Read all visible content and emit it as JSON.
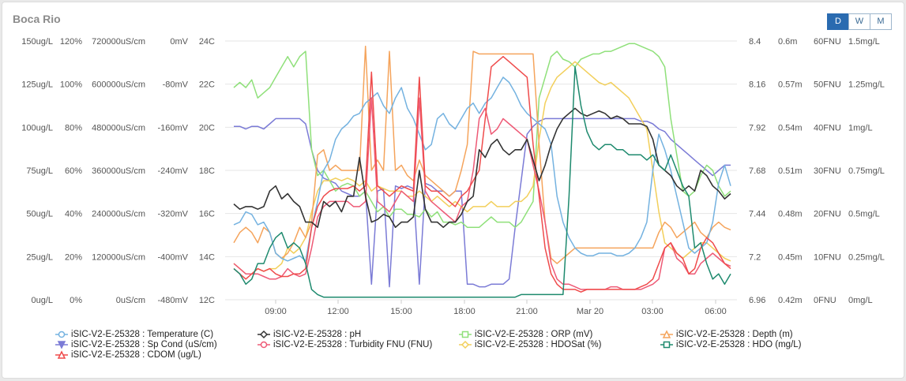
{
  "title": "Boca Rio",
  "range_buttons": [
    {
      "label": "D",
      "active": true
    },
    {
      "label": "W",
      "active": false
    },
    {
      "label": "M",
      "active": false
    }
  ],
  "colors": {
    "temperature": "#74b2e0",
    "ph": "#333333",
    "orp": "#8fe07a",
    "depth": "#f5a45c",
    "spcond": "#7b7bd6",
    "turbidity": "#ee5a76",
    "hdosat": "#f2cf5b",
    "hdo": "#1e8a6e",
    "cdom": "#ef4b4b"
  },
  "chart_data": {
    "type": "line",
    "title": "Boca Rio",
    "x_tick_labels": [
      "09:00",
      "12:00",
      "15:00",
      "18:00",
      "21:00",
      "Mar 20",
      "03:00",
      "06:00"
    ],
    "grid": true,
    "legend_placement": "bottom",
    "left_axes": [
      {
        "id": "cdom",
        "ticks": [
          "150ug/L",
          "125ug/L",
          "100ug/L",
          "75ug/L",
          "50ug/L",
          "25ug/L",
          "0ug/L"
        ],
        "range": [
          0,
          150
        ]
      },
      {
        "id": "hdosat",
        "ticks": [
          "120%",
          "100%",
          "80%",
          "60%",
          "40%",
          "20%",
          "0%"
        ],
        "range": [
          0,
          120
        ]
      },
      {
        "id": "spcond",
        "ticks": [
          "720000uS/cm",
          "600000uS/cm",
          "480000uS/cm",
          "360000uS/cm",
          "240000uS/cm",
          "120000uS/cm",
          "0uS/cm"
        ],
        "range": [
          0,
          720000
        ]
      },
      {
        "id": "orp",
        "ticks": [
          "0mV",
          "-80mV",
          "-160mV",
          "-240mV",
          "-320mV",
          "-400mV",
          "-480mV"
        ],
        "range": [
          -480,
          0
        ]
      },
      {
        "id": "temperature",
        "ticks": [
          "24C",
          "22C",
          "20C",
          "18C",
          "16C",
          "14C",
          "12C"
        ],
        "range": [
          12,
          24
        ]
      }
    ],
    "right_axes": [
      {
        "id": "ph",
        "ticks": [
          "8.4",
          "8.16",
          "7.92",
          "7.68",
          "7.44",
          "7.2",
          "6.96"
        ],
        "range": [
          6.96,
          8.4
        ]
      },
      {
        "id": "depth",
        "ticks": [
          "0.6m",
          "0.57m",
          "0.54m",
          "0.51m",
          "0.48m",
          "0.45m",
          "0.42m"
        ],
        "range": [
          0.42,
          0.6
        ]
      },
      {
        "id": "turbidity",
        "ticks": [
          "60FNU",
          "50FNU",
          "40FNU",
          "30FNU",
          "20FNU",
          "10FNU",
          "0FNU"
        ],
        "range": [
          0,
          60
        ]
      },
      {
        "id": "hdo",
        "ticks": [
          "1.5mg/L",
          "1.25mg/L",
          "1mg/L",
          "0.75mg/L",
          "0.5mg/L",
          "0.25mg/L",
          "0mg/L"
        ],
        "range": [
          0,
          1.5
        ]
      }
    ],
    "series": [
      {
        "id": "temperature",
        "name": "iSIC-V2-E-25328 : Temperature (C)",
        "marker": "circle",
        "y_norm": [
          0.29,
          0.3,
          0.34,
          0.33,
          0.29,
          0.3,
          0.26,
          0.18,
          0.16,
          0.15,
          0.16,
          0.17,
          0.15,
          0.28,
          0.38,
          0.5,
          0.54,
          0.62,
          0.66,
          0.68,
          0.71,
          0.72,
          0.76,
          0.78,
          0.8,
          0.75,
          0.72,
          0.78,
          0.82,
          0.74,
          0.7,
          0.64,
          0.58,
          0.6,
          0.7,
          0.72,
          0.68,
          0.66,
          0.7,
          0.74,
          0.76,
          0.72,
          0.76,
          0.78,
          0.82,
          0.86,
          0.84,
          0.8,
          0.75,
          0.72,
          0.7,
          0.68,
          0.66,
          0.6,
          0.4,
          0.3,
          0.24,
          0.2,
          0.18,
          0.17,
          0.17,
          0.18,
          0.18,
          0.18,
          0.17,
          0.17,
          0.18,
          0.2,
          0.24,
          0.3,
          0.5,
          0.64,
          0.58,
          0.5,
          0.4,
          0.3,
          0.2,
          0.18,
          0.2,
          0.22,
          0.3,
          0.45,
          0.52,
          0.44
        ],
        "y_end": 0.52
      },
      {
        "id": "spcond",
        "name": "iSIC-V2-E-25328 : Sp Cond (uS/cm)",
        "marker": "triangle-down",
        "y_norm": [
          0.67,
          0.67,
          0.66,
          0.67,
          0.67,
          0.66,
          0.68,
          0.7,
          0.7,
          0.7,
          0.7,
          0.7,
          0.68,
          0.58,
          0.5,
          0.47,
          0.46,
          0.45,
          0.42,
          0.41,
          0.4,
          0.4,
          0.42,
          0.06,
          0.42,
          0.43,
          0.05,
          0.44,
          0.43,
          0.44,
          0.43,
          0.06,
          0.45,
          0.44,
          0.42,
          0.42,
          0.4,
          0.42,
          0.42,
          0.06,
          0.06,
          0.05,
          0.05,
          0.06,
          0.06,
          0.06,
          0.08,
          0.28,
          0.46,
          0.64,
          0.67,
          0.69,
          0.7,
          0.7,
          0.7,
          0.7,
          0.7,
          0.7,
          0.7,
          0.7,
          0.7,
          0.7,
          0.7,
          0.7,
          0.7,
          0.7,
          0.7,
          0.7,
          0.69,
          0.69,
          0.68,
          0.66,
          0.65,
          0.62,
          0.6,
          0.58,
          0.56,
          0.54,
          0.52,
          0.5,
          0.48,
          0.5,
          0.52,
          0.52
        ],
        "y_end": 0.52
      },
      {
        "id": "cdom",
        "name": "iSIC-V2-E-25328 : CDOM (ug/L)",
        "marker": "triangle",
        "y_norm": [
          0.12,
          0.1,
          0.08,
          0.1,
          0.12,
          0.11,
          0.12,
          0.1,
          0.09,
          0.09,
          0.1,
          0.1,
          0.12,
          0.28,
          0.36,
          0.4,
          0.42,
          0.43,
          0.43,
          0.43,
          0.44,
          0.42,
          0.44,
          0.88,
          0.44,
          0.42,
          0.4,
          0.42,
          0.44,
          0.43,
          0.42,
          0.86,
          0.44,
          0.42,
          0.42,
          0.4,
          0.38,
          0.36,
          0.4,
          0.42,
          0.46,
          0.5,
          0.7,
          0.9,
          0.92,
          0.94,
          0.92,
          0.9,
          0.88,
          0.86,
          0.6,
          0.4,
          0.2,
          0.1,
          0.06,
          0.04,
          0.04,
          0.04,
          0.03,
          0.04,
          0.04,
          0.04,
          0.04,
          0.04,
          0.04,
          0.04,
          0.04,
          0.04,
          0.05,
          0.06,
          0.08,
          0.14,
          0.2,
          0.22,
          0.18,
          0.16,
          0.1,
          0.12,
          0.2,
          0.24,
          0.22,
          0.18,
          0.14,
          0.12
        ],
        "y_end": 0.12
      },
      {
        "id": "ph",
        "name": "iSIC-V2-E-25328 : pH",
        "marker": "diamond",
        "y_norm": [
          0.37,
          0.35,
          0.36,
          0.36,
          0.35,
          0.36,
          0.42,
          0.44,
          0.39,
          0.41,
          0.38,
          0.36,
          0.3,
          0.3,
          0.28,
          0.38,
          0.36,
          0.38,
          0.34,
          0.4,
          0.4,
          0.55,
          0.4,
          0.3,
          0.31,
          0.33,
          0.32,
          0.28,
          0.3,
          0.3,
          0.32,
          0.5,
          0.35,
          0.3,
          0.3,
          0.28,
          0.3,
          0.3,
          0.33,
          0.38,
          0.4,
          0.58,
          0.55,
          0.6,
          0.62,
          0.58,
          0.56,
          0.58,
          0.58,
          0.62,
          0.54,
          0.46,
          0.52,
          0.6,
          0.66,
          0.7,
          0.72,
          0.74,
          0.72,
          0.71,
          0.72,
          0.73,
          0.72,
          0.7,
          0.71,
          0.7,
          0.68,
          0.68,
          0.68,
          0.67,
          0.62,
          0.52,
          0.5,
          0.48,
          0.44,
          0.42,
          0.44,
          0.42,
          0.5,
          0.48,
          0.44,
          0.42,
          0.39,
          0.41
        ],
        "y_end": 0.41
      },
      {
        "id": "turbidity",
        "name": "iSIC-V2-E-25328 : Turbidity FNU (FNU)",
        "marker": "circle",
        "y_norm": [
          0.14,
          0.12,
          0.1,
          0.1,
          0.1,
          0.09,
          0.08,
          0.08,
          0.09,
          0.12,
          0.1,
          0.09,
          0.1,
          0.2,
          0.32,
          0.36,
          0.38,
          0.38,
          0.38,
          0.38,
          0.36,
          0.36,
          0.38,
          0.78,
          0.38,
          0.36,
          0.34,
          0.38,
          0.42,
          0.4,
          0.38,
          0.78,
          0.42,
          0.38,
          0.36,
          0.34,
          0.32,
          0.3,
          0.36,
          0.38,
          0.5,
          0.7,
          0.74,
          0.64,
          0.66,
          0.7,
          0.68,
          0.66,
          0.64,
          0.62,
          0.52,
          0.42,
          0.3,
          0.14,
          0.08,
          0.06,
          0.06,
          0.05,
          0.04,
          0.04,
          0.04,
          0.04,
          0.04,
          0.05,
          0.05,
          0.04,
          0.04,
          0.04,
          0.04,
          0.05,
          0.06,
          0.08,
          0.2,
          0.22,
          0.16,
          0.14,
          0.1,
          0.1,
          0.14,
          0.16,
          0.18,
          0.16,
          0.14,
          0.13
        ],
        "y_end": 0.13
      },
      {
        "id": "orp",
        "name": "iSIC-V2-E-25328 : ORP (mV)",
        "marker": "square",
        "y_norm": [
          0.82,
          0.84,
          0.82,
          0.85,
          0.78,
          0.8,
          0.82,
          0.86,
          0.9,
          0.94,
          0.9,
          0.94,
          0.96,
          0.58,
          0.48,
          0.5,
          0.46,
          0.42,
          0.44,
          0.45,
          0.44,
          0.4,
          0.42,
          0.38,
          0.34,
          0.36,
          0.32,
          0.35,
          0.35,
          0.33,
          0.33,
          0.32,
          0.35,
          0.32,
          0.34,
          0.3,
          0.3,
          0.29,
          0.3,
          0.28,
          0.28,
          0.28,
          0.3,
          0.32,
          0.3,
          0.3,
          0.3,
          0.28,
          0.3,
          0.34,
          0.38,
          0.78,
          0.86,
          0.94,
          0.96,
          0.93,
          0.92,
          0.9,
          0.93,
          0.94,
          0.95,
          0.95,
          0.96,
          0.96,
          0.97,
          0.98,
          0.99,
          0.99,
          0.98,
          0.97,
          0.96,
          0.94,
          0.9,
          0.7,
          0.56,
          0.42,
          0.4,
          0.42,
          0.48,
          0.52,
          0.5,
          0.44,
          0.4,
          0.42
        ],
        "y_end": 0.42
      },
      {
        "id": "hdosat",
        "name": "iSIC-V2-E-25328 : HDOSat (%)",
        "marker": "diamond",
        "y_norm": [
          0.14,
          0.12,
          0.1,
          0.1,
          0.12,
          0.11,
          0.12,
          0.12,
          0.14,
          0.2,
          0.18,
          0.2,
          0.24,
          0.34,
          0.42,
          0.46,
          0.46,
          0.47,
          0.46,
          0.47,
          0.46,
          0.44,
          0.46,
          0.42,
          0.44,
          0.43,
          0.42,
          0.42,
          0.42,
          0.4,
          0.4,
          0.42,
          0.4,
          0.38,
          0.4,
          0.38,
          0.36,
          0.38,
          0.36,
          0.34,
          0.36,
          0.36,
          0.36,
          0.38,
          0.36,
          0.36,
          0.36,
          0.38,
          0.38,
          0.4,
          0.44,
          0.62,
          0.76,
          0.82,
          0.86,
          0.88,
          0.9,
          0.92,
          0.9,
          0.88,
          0.86,
          0.84,
          0.83,
          0.84,
          0.82,
          0.8,
          0.78,
          0.74,
          0.7,
          0.66,
          0.5,
          0.34,
          0.22,
          0.2,
          0.18,
          0.16,
          0.18,
          0.2,
          0.22,
          0.22,
          0.2,
          0.18,
          0.16,
          0.15
        ],
        "y_end": 0.15
      },
      {
        "id": "hdo",
        "name": "iSIC-V2-E-25328 : HDO (mg/L)",
        "marker": "square",
        "y_norm": [
          0.12,
          0.1,
          0.06,
          0.08,
          0.14,
          0.14,
          0.2,
          0.24,
          0.26,
          0.2,
          0.22,
          0.2,
          0.14,
          0.04,
          0.02,
          0.01,
          0.01,
          0.01,
          0.01,
          0.01,
          0.01,
          0.01,
          0.01,
          0.01,
          0.01,
          0.01,
          0.01,
          0.01,
          0.01,
          0.01,
          0.01,
          0.01,
          0.01,
          0.01,
          0.01,
          0.01,
          0.01,
          0.01,
          0.01,
          0.01,
          0.01,
          0.01,
          0.01,
          0.01,
          0.01,
          0.01,
          0.01,
          0.01,
          0.02,
          0.02,
          0.02,
          0.02,
          0.02,
          0.02,
          0.02,
          0.02,
          0.4,
          0.9,
          0.75,
          0.65,
          0.6,
          0.58,
          0.6,
          0.6,
          0.58,
          0.58,
          0.56,
          0.56,
          0.56,
          0.54,
          0.56,
          0.52,
          0.5,
          0.56,
          0.5,
          0.44,
          0.4,
          0.2,
          0.22,
          0.14,
          0.08,
          0.1,
          0.06,
          0.1
        ],
        "y_end": 0.1
      },
      {
        "id": "depth",
        "name": "iSIC-V2-E-25328 : Depth (m)",
        "marker": "triangle",
        "y_norm": [
          0.22,
          0.26,
          0.28,
          0.26,
          0.22,
          0.28,
          0.26,
          0.18,
          0.16,
          0.18,
          0.22,
          0.28,
          0.24,
          0.3,
          0.56,
          0.58,
          0.5,
          0.52,
          0.5,
          0.5,
          0.5,
          0.5,
          0.98,
          0.5,
          0.54,
          0.5,
          0.96,
          0.5,
          0.52,
          0.48,
          0.46,
          0.54,
          0.48,
          0.46,
          0.44,
          0.42,
          0.4,
          0.42,
          0.5,
          0.6,
          0.96,
          0.95,
          0.95,
          0.95,
          0.95,
          0.95,
          0.95,
          0.95,
          0.95,
          0.95,
          0.95,
          0.6,
          0.3,
          0.16,
          0.14,
          0.16,
          0.18,
          0.2,
          0.2,
          0.2,
          0.2,
          0.2,
          0.2,
          0.2,
          0.2,
          0.2,
          0.2,
          0.2,
          0.2,
          0.2,
          0.2,
          0.26,
          0.3,
          0.28,
          0.24,
          0.26,
          0.28,
          0.3,
          0.26,
          0.24,
          0.28,
          0.3,
          0.28,
          0.27
        ],
        "y_end": 0.27
      }
    ]
  }
}
